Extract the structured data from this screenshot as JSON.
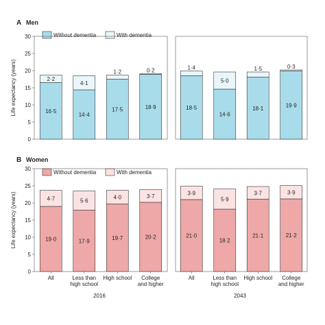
{
  "panels": [
    {
      "letter": "A",
      "title": "Men",
      "legend": [
        "Without dementia",
        "With dementia"
      ]
    },
    {
      "letter": "B",
      "title": "Women",
      "legend": [
        "Without dementia",
        "With dementia"
      ]
    }
  ],
  "colors": {
    "men_without": "#a8dcea",
    "men_with": "#eaf6f9",
    "women_without": "#eea8a8",
    "women_with": "#fbe3e3",
    "axis": "#555555"
  },
  "chart_data": [
    {
      "type": "bar",
      "stacked": true,
      "title": "Men",
      "ylabel": "Life expectancy (years)",
      "ylim": [
        0,
        30
      ],
      "yticks": [
        0,
        5,
        10,
        15,
        20,
        25,
        30
      ],
      "groups": [
        {
          "label": "2016",
          "categories": [
            "All",
            "Less than high school",
            "High school",
            "College and higher"
          ],
          "series": [
            {
              "name": "Without dementia",
              "values": [
                16.5,
                14.4,
                17.5,
                18.9
              ],
              "labels": [
                "16·5",
                "14·4",
                "17·5",
                "18·9"
              ]
            },
            {
              "name": "With dementia",
              "values": [
                2.2,
                4.1,
                1.2,
                0.2
              ],
              "labels": [
                "2·2",
                "4·1",
                "1·2",
                "0·2"
              ]
            }
          ]
        },
        {
          "label": "2043",
          "categories": [
            "All",
            "Less than high school",
            "High school",
            "College and higher"
          ],
          "series": [
            {
              "name": "Without dementia",
              "values": [
                18.5,
                14.6,
                18.1,
                19.9
              ],
              "labels": [
                "18·5",
                "14·6",
                "18·1",
                "19·9"
              ]
            },
            {
              "name": "With dementia",
              "values": [
                1.4,
                5.0,
                1.5,
                0.3
              ],
              "labels": [
                "1·4",
                "5·0",
                "1·5",
                "0·3"
              ]
            }
          ]
        }
      ]
    },
    {
      "type": "bar",
      "stacked": true,
      "title": "Women",
      "ylabel": "Life expectancy (years)",
      "ylim": [
        0,
        30
      ],
      "yticks": [
        0,
        5,
        10,
        15,
        20,
        25,
        30
      ],
      "groups": [
        {
          "label": "2016",
          "categories": [
            "All",
            "Less than high school",
            "High school",
            "College and higher"
          ],
          "series": [
            {
              "name": "Without dementia",
              "values": [
                19.0,
                17.9,
                19.7,
                20.2
              ],
              "labels": [
                "19·0",
                "17·9",
                "19·7",
                "20·2"
              ]
            },
            {
              "name": "With dementia",
              "values": [
                4.7,
                5.6,
                4.0,
                3.7
              ],
              "labels": [
                "4·7",
                "5·6",
                "4·0",
                "3·7"
              ]
            }
          ]
        },
        {
          "label": "2043",
          "categories": [
            "All",
            "Less than high school",
            "High school",
            "College and higher"
          ],
          "series": [
            {
              "name": "Without dementia",
              "values": [
                21.0,
                18.2,
                21.1,
                21.2
              ],
              "labels": [
                "21·0",
                "18·2",
                "21·1",
                "21·2"
              ]
            },
            {
              "name": "With dementia",
              "values": [
                3.9,
                5.9,
                3.7,
                3.9
              ],
              "labels": [
                "3·9",
                "5·9",
                "3·7",
                "3·9"
              ]
            }
          ]
        }
      ]
    }
  ],
  "x_category_lines": [
    [
      "All"
    ],
    [
      "Less than",
      "high school"
    ],
    [
      "High school"
    ],
    [
      "College",
      "and higher"
    ]
  ]
}
